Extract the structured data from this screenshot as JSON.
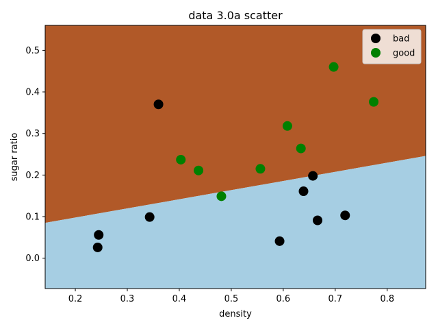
{
  "chart_data": {
    "type": "scatter",
    "title": "data 3.0a scatter",
    "xlabel": "density",
    "ylabel": "sugar ratio",
    "xlim": [
      0.142,
      0.874
    ],
    "ylim": [
      -0.073,
      0.56
    ],
    "xticks": [
      "0.2",
      "0.3",
      "0.4",
      "0.5",
      "0.6",
      "0.7",
      "0.8"
    ],
    "yticks": [
      "0.0",
      "0.1",
      "0.2",
      "0.3",
      "0.4",
      "0.5"
    ],
    "grid": false,
    "legend_position": "top-right",
    "decision_boundary": {
      "x": [
        0.142,
        0.874
      ],
      "y": [
        0.085,
        0.246
      ],
      "region_above_color": "#b15928",
      "region_below_color": "#a6cee3"
    },
    "series": [
      {
        "name": "bad",
        "color": "#000000",
        "points": [
          {
            "x": 0.36,
            "y": 0.37
          },
          {
            "x": 0.243,
            "y": 0.026
          },
          {
            "x": 0.245,
            "y": 0.056
          },
          {
            "x": 0.343,
            "y": 0.099
          },
          {
            "x": 0.593,
            "y": 0.041
          },
          {
            "x": 0.639,
            "y": 0.161
          },
          {
            "x": 0.657,
            "y": 0.198
          },
          {
            "x": 0.666,
            "y": 0.091
          },
          {
            "x": 0.719,
            "y": 0.103
          }
        ]
      },
      {
        "name": "good",
        "color": "#008000",
        "points": [
          {
            "x": 0.697,
            "y": 0.46
          },
          {
            "x": 0.774,
            "y": 0.376
          },
          {
            "x": 0.634,
            "y": 0.264
          },
          {
            "x": 0.608,
            "y": 0.318
          },
          {
            "x": 0.556,
            "y": 0.215
          },
          {
            "x": 0.403,
            "y": 0.237
          },
          {
            "x": 0.481,
            "y": 0.149
          },
          {
            "x": 0.437,
            "y": 0.211
          }
        ]
      }
    ]
  }
}
